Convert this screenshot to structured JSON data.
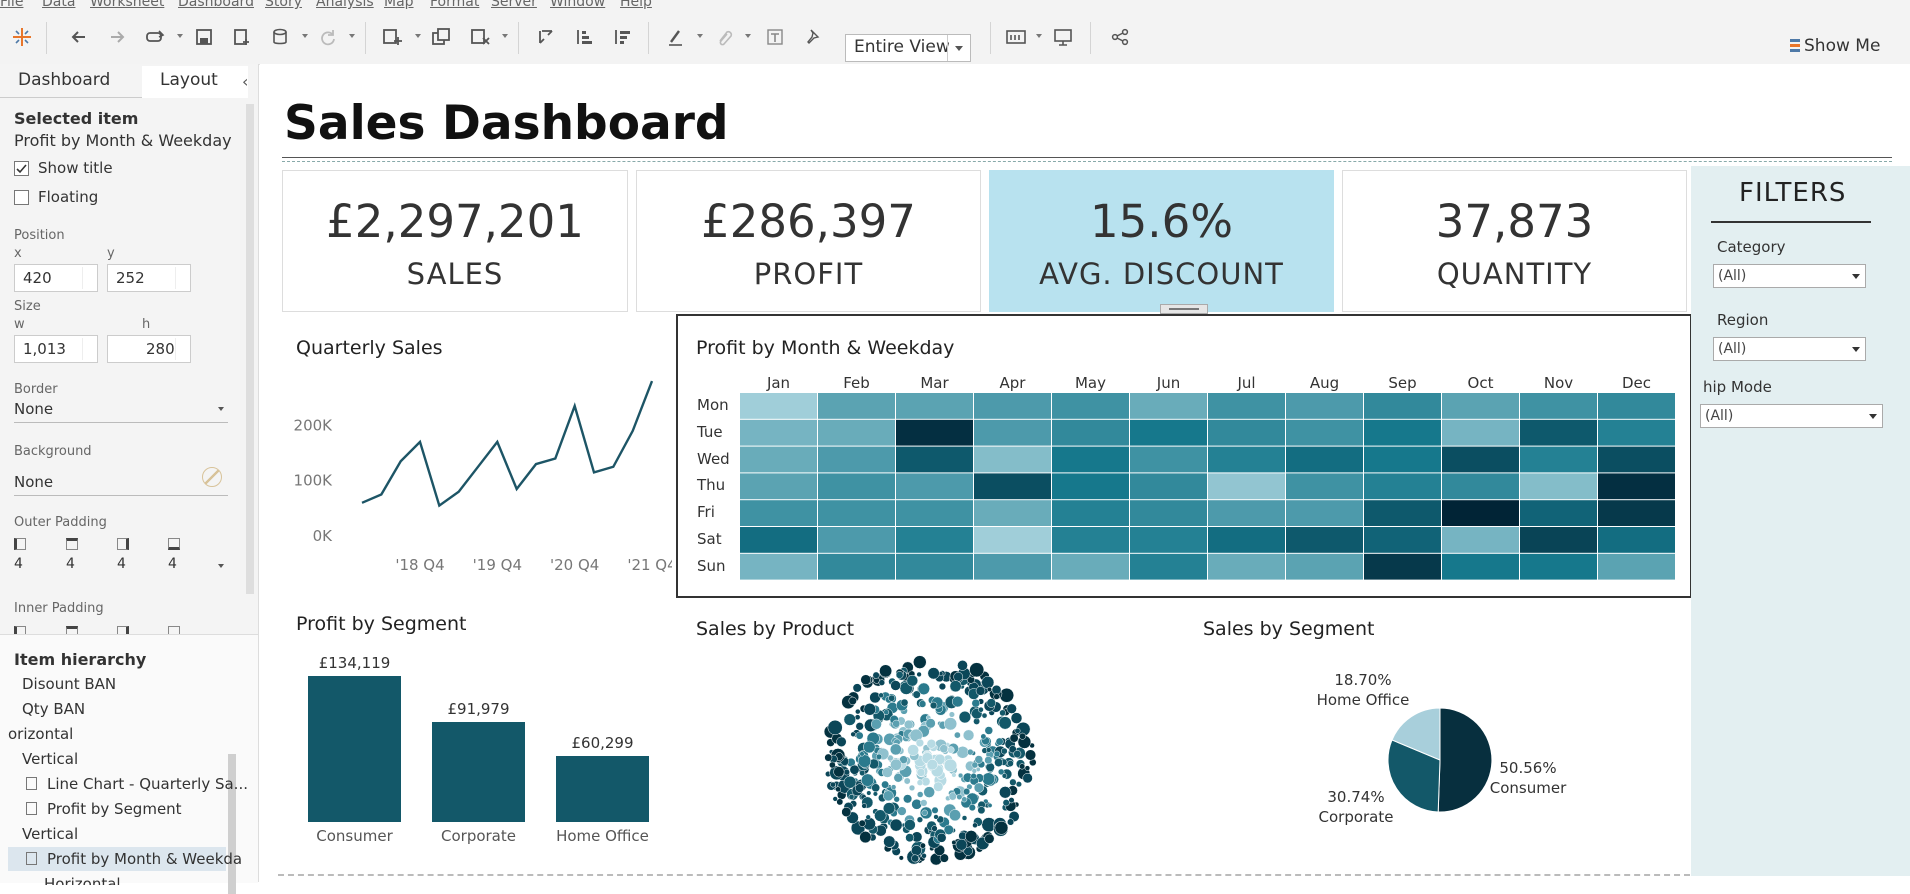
{
  "menu": [
    "File",
    "Data",
    "Worksheet",
    "Dashboard",
    "Story",
    "Analysis",
    "Map",
    "Format",
    "Server",
    "Window",
    "Help"
  ],
  "toolbar": {
    "view_select": "Entire View",
    "show_me": "Show Me"
  },
  "left_pane": {
    "tabs": [
      "Dashboard",
      "Layout"
    ],
    "selected_item_heading": "Selected item",
    "selected_item_name": "Profit by Month & Weekday",
    "show_title": "Show title",
    "floating": "Floating",
    "position_label": "Position",
    "x_label": "x",
    "x_value": "420",
    "y_label": "y",
    "y_value": "252",
    "size_label": "Size",
    "w_label": "w",
    "w_value": "1,013",
    "h_label": "h",
    "h_value": "280",
    "border_label": "Border",
    "border_value": "None",
    "background_label": "Background",
    "background_value": "None",
    "outer_padding_label": "Outer Padding",
    "outer_padding_values": [
      "4",
      "4",
      "4",
      "4"
    ],
    "inner_padding_label": "Inner Padding",
    "item_hierarchy_heading": "Item hierarchy",
    "hierarchy": [
      "Disount BAN",
      "Qty BAN",
      "orizontal",
      "Vertical",
      "Line Chart - Quarterly Sa...",
      "Profit by Segment",
      "Vertical",
      "Profit by Month & Weekda",
      "Horizontal"
    ]
  },
  "dashboard": {
    "title": "Sales Dashboard",
    "kpis": [
      {
        "value": "£2,297,201",
        "label": "SALES"
      },
      {
        "value": "£286,397",
        "label": "PROFIT"
      },
      {
        "value": "15.6%",
        "label": "AVG. DISCOUNT"
      },
      {
        "value": "37,873",
        "label": "QUANTITY"
      }
    ],
    "colors": {
      "highlight_kpi": "#b8e2ef",
      "bar": "#135869",
      "line": "#1d5566",
      "filters_bg": "#e3eff1"
    }
  },
  "filters": {
    "title": "FILTERS",
    "items": [
      {
        "label": "Category",
        "value": "(All)"
      },
      {
        "label": "Region",
        "value": "(All)"
      },
      {
        "label": "hip Mode",
        "value": "(All)"
      }
    ]
  },
  "chart_data": [
    {
      "type": "line",
      "title": "Quarterly Sales",
      "y_ticks": [
        "200K",
        "100K",
        "0K"
      ],
      "x_ticks": [
        "'18 Q4",
        "'19 Q4",
        "'20 Q4",
        "'21 Q4"
      ],
      "ylim": [
        0,
        300000
      ],
      "x": [
        "2018 Q1",
        "2018 Q2",
        "2018 Q3",
        "2018 Q4",
        "2019 Q1",
        "2019 Q2",
        "2019 Q3",
        "2019 Q4",
        "2020 Q1",
        "2020 Q2",
        "2020 Q3",
        "2020 Q4",
        "2021 Q1",
        "2021 Q2",
        "2021 Q3",
        "2021 Q4"
      ],
      "values": [
        60000,
        75000,
        135000,
        170000,
        55000,
        80000,
        125000,
        170000,
        85000,
        130000,
        140000,
        235000,
        115000,
        125000,
        190000,
        280000
      ]
    },
    {
      "type": "heatmap",
      "title": "Profit by Month & Weekday",
      "columns": [
        "Jan",
        "Feb",
        "Mar",
        "Apr",
        "May",
        "Jun",
        "Jul",
        "Aug",
        "Sep",
        "Oct",
        "Nov",
        "Dec"
      ],
      "rows": [
        "Mon",
        "Tue",
        "Wed",
        "Thu",
        "Fri",
        "Sat",
        "Sun"
      ],
      "values": [
        [
          0.1,
          0.35,
          0.35,
          0.4,
          0.45,
          0.3,
          0.45,
          0.4,
          0.5,
          0.35,
          0.45,
          0.5
        ],
        [
          0.25,
          0.3,
          0.95,
          0.4,
          0.5,
          0.6,
          0.5,
          0.45,
          0.6,
          0.25,
          0.75,
          0.55
        ],
        [
          0.3,
          0.4,
          0.75,
          0.2,
          0.6,
          0.45,
          0.55,
          0.65,
          0.6,
          0.8,
          0.55,
          0.8
        ],
        [
          0.35,
          0.45,
          0.4,
          0.8,
          0.6,
          0.5,
          0.15,
          0.45,
          0.55,
          0.5,
          0.2,
          0.95
        ],
        [
          0.45,
          0.45,
          0.45,
          0.3,
          0.55,
          0.5,
          0.4,
          0.4,
          0.75,
          1.0,
          0.7,
          0.9
        ],
        [
          0.65,
          0.4,
          0.55,
          0.1,
          0.55,
          0.55,
          0.65,
          0.75,
          0.7,
          0.25,
          0.85,
          0.65
        ],
        [
          0.25,
          0.5,
          0.5,
          0.4,
          0.3,
          0.55,
          0.3,
          0.35,
          0.9,
          0.6,
          0.6,
          0.35
        ]
      ]
    },
    {
      "type": "bar",
      "title": "Profit by Segment",
      "categories": [
        "Consumer",
        "Corporate",
        "Home Office"
      ],
      "values": [
        134119,
        91979,
        60299
      ],
      "data_labels": [
        "£134,119",
        "£91,979",
        "£60,299"
      ]
    },
    {
      "type": "scatter",
      "title": "Sales by Product"
    },
    {
      "type": "pie",
      "title": "Sales by Segment",
      "slices": [
        {
          "name": "Consumer",
          "percent": 50.56,
          "label": "50.56%",
          "color": "#072f3e"
        },
        {
          "name": "Corporate",
          "percent": 30.74,
          "label": "30.74%",
          "color": "#135869"
        },
        {
          "name": "Home Office",
          "percent": 18.7,
          "label": "18.70%",
          "color": "#a8cfdb"
        }
      ]
    }
  ]
}
